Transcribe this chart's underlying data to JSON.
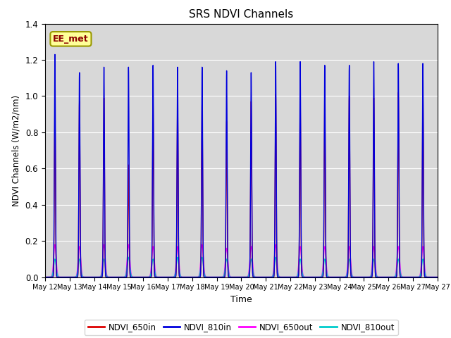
{
  "title": "SRS NDVI Channels",
  "xlabel": "Time",
  "ylabel": "NDVI Channels (W/m2/nm)",
  "ylim": [
    0.0,
    1.4
  ],
  "annotation_text": "EE_met",
  "colors": {
    "NDVI_650in": "#dd0000",
    "NDVI_810in": "#0000dd",
    "NDVI_650out": "#ff00ff",
    "NDVI_810out": "#00cccc"
  },
  "background_color": "#d8d8d8",
  "peak_heights_650in": [
    0.95,
    0.97,
    0.99,
    0.62,
    0.97,
    0.99,
    0.97,
    0.86,
    0.97,
    1.01,
    1.01,
    1.0,
    1.0,
    0.99,
    1.02,
    1.04
  ],
  "peak_heights_810in": [
    1.23,
    1.13,
    1.16,
    1.16,
    1.17,
    1.16,
    1.16,
    1.14,
    1.13,
    1.19,
    1.19,
    1.17,
    1.17,
    1.19,
    1.18,
    1.18
  ],
  "peak_heights_650out": [
    0.18,
    0.17,
    0.18,
    0.18,
    0.17,
    0.17,
    0.18,
    0.16,
    0.17,
    0.18,
    0.17,
    0.17,
    0.17,
    0.17,
    0.17,
    0.17
  ],
  "peak_heights_810out": [
    0.1,
    0.1,
    0.1,
    0.11,
    0.1,
    0.11,
    0.11,
    0.1,
    0.1,
    0.11,
    0.1,
    0.1,
    0.1,
    0.1,
    0.1,
    0.1
  ],
  "xtick_labels": [
    "May 12",
    "May 13",
    "May 14",
    "May 15",
    "May 16",
    "May 17",
    "May 18",
    "May 19",
    "May 20",
    "May 21",
    "May 22",
    "May 23",
    "May 24",
    "May 25",
    "May 26",
    "May 27"
  ],
  "num_days": 16,
  "points_per_day": 200
}
